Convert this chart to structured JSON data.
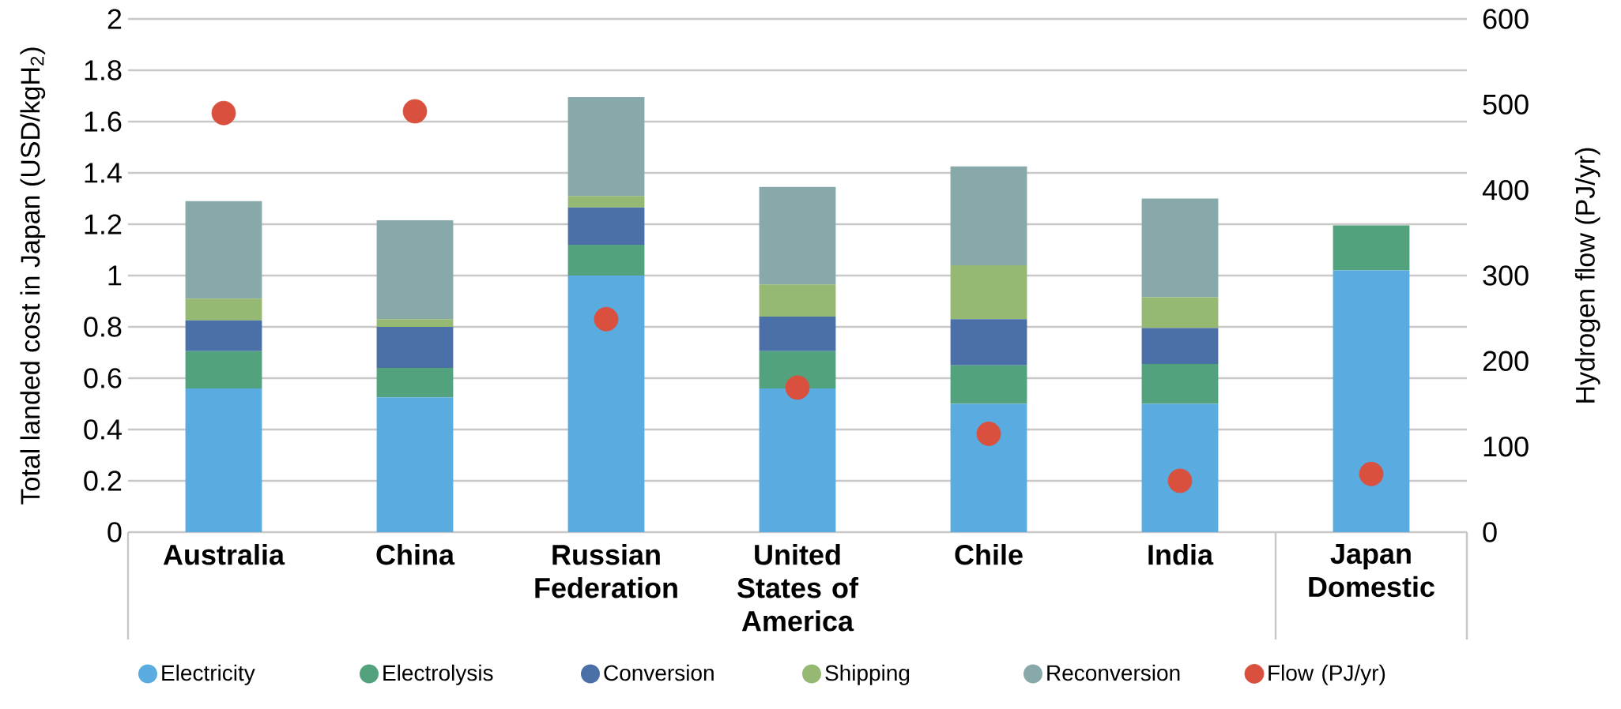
{
  "chart_data": {
    "type": "bar",
    "stacked": true,
    "categories": [
      "Australia",
      "China",
      "Russian Federation",
      "United States of America",
      "Chile",
      "India",
      "Japan Domestic"
    ],
    "ylabel": "Total landed cost in Japan (USD/kgH$_{2}$)",
    "y2label": "Hydrogen flow (PJ/yr)",
    "ylim": [
      0,
      2
    ],
    "yticks": [
      0,
      0.2,
      0.4,
      0.6,
      0.8,
      1,
      1.2,
      1.4,
      1.6,
      1.8,
      2
    ],
    "y2lim": [
      0,
      600
    ],
    "y2ticks": [
      0,
      100,
      200,
      300,
      400,
      500,
      600
    ],
    "grid": "y",
    "legend": "bottom",
    "series": [
      {
        "name": "Electricity",
        "color": "#5aabe0",
        "values": [
          0.56,
          0.525,
          1.0,
          0.56,
          0.5,
          0.5,
          1.02
        ]
      },
      {
        "name": "Electrolysis",
        "color": "#52a27e",
        "values": [
          0.145,
          0.115,
          0.12,
          0.145,
          0.15,
          0.155,
          0.175
        ]
      },
      {
        "name": "Conversion",
        "color": "#4b70a8",
        "values": [
          0.12,
          0.16,
          0.145,
          0.135,
          0.18,
          0.14,
          null
        ]
      },
      {
        "name": "Shipping",
        "color": "#95b973",
        "values": [
          0.085,
          0.03,
          0.045,
          0.125,
          0.21,
          0.12,
          null
        ]
      },
      {
        "name": "Reconversion",
        "color": "#88a9a9",
        "values": [
          0.38,
          0.385,
          0.385,
          0.38,
          0.385,
          0.385,
          null
        ]
      },
      {
        "name": "Flow (PJ/yr)",
        "type": "scatter",
        "axis": "y2",
        "marker": "circle",
        "color": "#d9503f",
        "values": [
          490,
          492,
          249,
          169,
          115,
          60,
          68
        ]
      }
    ]
  }
}
